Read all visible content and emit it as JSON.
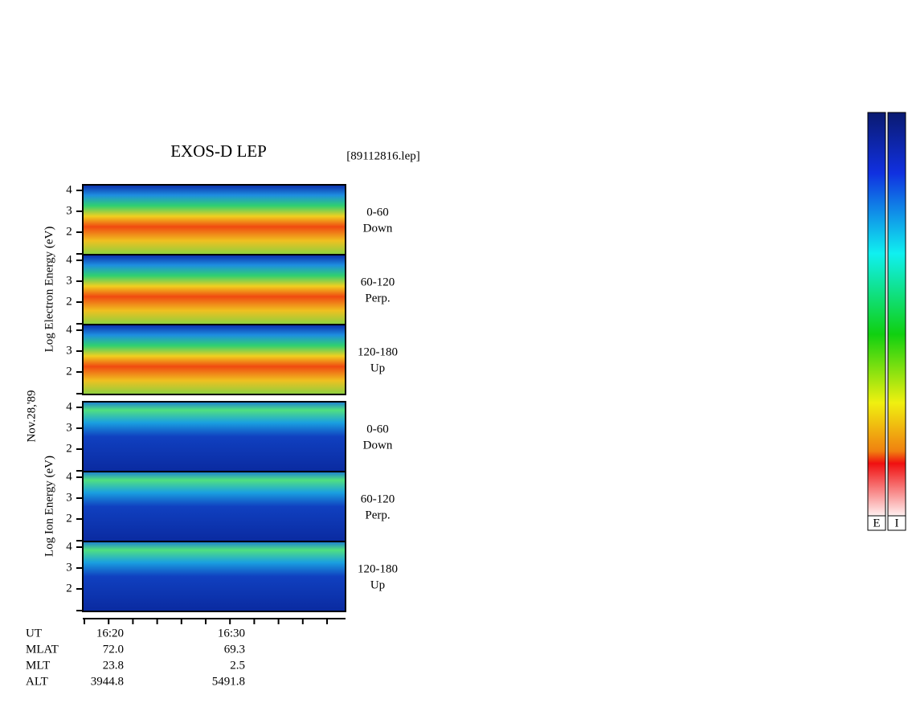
{
  "header": {
    "title": "EXOS-D LEP",
    "file": "[89112816.lep]"
  },
  "electron_axis_label": "Log  Electron  Energy (eV)",
  "ion_axis_label": "Log  Ion  Energy (eV)",
  "date": "Nov.28,'89",
  "panels": [
    {
      "species": "electron",
      "yticks": [
        4,
        3,
        2
      ],
      "pitch": "0-60",
      "direction": "Down"
    },
    {
      "species": "electron",
      "yticks": [
        4,
        3,
        2
      ],
      "pitch": "60-120",
      "direction": "Perp."
    },
    {
      "species": "electron",
      "yticks": [
        4,
        3,
        2
      ],
      "pitch": "120-180",
      "direction": "Up"
    },
    {
      "species": "ion",
      "yticks": [
        4,
        3,
        2
      ],
      "pitch": "0-60",
      "direction": "Down"
    },
    {
      "species": "ion",
      "yticks": [
        4,
        3,
        2
      ],
      "pitch": "60-120",
      "direction": "Perp."
    },
    {
      "species": "ion",
      "yticks": [
        4,
        3,
        2
      ],
      "pitch": "120-180",
      "direction": "Up"
    }
  ],
  "footer": {
    "rows": [
      {
        "label": "UT",
        "values": [
          "16:20",
          "16:30"
        ]
      },
      {
        "label": "MLAT",
        "values": [
          "72.0",
          "69.3"
        ]
      },
      {
        "label": "MLT",
        "values": [
          "23.8",
          "2.5"
        ]
      },
      {
        "label": "ALT",
        "values": [
          "3944.8",
          "5491.8"
        ]
      }
    ]
  },
  "colorbars": [
    "E",
    "I"
  ]
}
